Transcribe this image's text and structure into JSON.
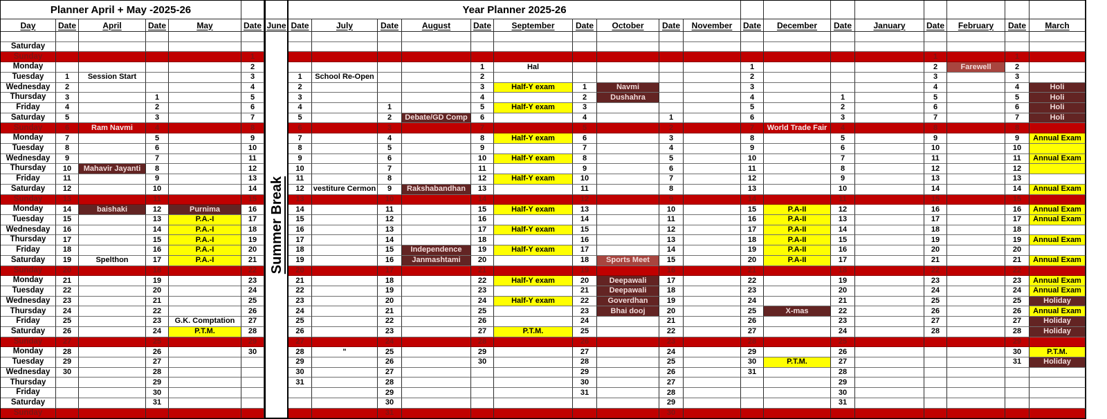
{
  "titles": {
    "left": "Planner April + May -2025-26",
    "right": "Year Planner 2025-26"
  },
  "summer_break": "Summer Break",
  "header": {
    "day": "Day",
    "date": "Date"
  },
  "day_names": [
    "Saturday",
    "Sunday",
    "Monday",
    "Tuesday",
    "Wednesday",
    "Thursday",
    "Friday"
  ],
  "colors": {
    "sunday_band": "#C00000",
    "sunday_text": "#7E1412",
    "holiday_maroon": "#632423",
    "event_brick": "#A8453F",
    "exam_yellow": "#FFFF00",
    "light_event_text": "#F2DCDB"
  },
  "months": [
    {
      "name": "April",
      "start_index": 4,
      "days": 30,
      "has_event_col": true,
      "events": {
        "1": [
          "Session Start",
          "p"
        ],
        "6": [
          "Ram Navmi",
          "w"
        ],
        "10": [
          "Mahavir Jayanti",
          "m"
        ],
        "14": [
          "baishaki",
          "m"
        ],
        "19": [
          "Spelthon",
          "p"
        ]
      }
    },
    {
      "name": "May",
      "start_index": 6,
      "days": 31,
      "has_event_col": true,
      "events": {
        "12": [
          "Purnima",
          "m"
        ],
        "13": [
          "P.A.-I",
          "y"
        ],
        "14": [
          "P.A.-I",
          "y"
        ],
        "15": [
          "P.A.-I",
          "y"
        ],
        "16": [
          "P.A.-I",
          "y"
        ],
        "17": [
          "P.A.-I",
          "y"
        ],
        "23": [
          "G.K. Comptation",
          "p"
        ],
        "24": [
          "P.T.M.",
          "y"
        ]
      }
    },
    {
      "name": "June",
      "start_index": 2,
      "days": 30,
      "has_event_col": false,
      "events": {}
    },
    {
      "name": "July",
      "start_index": 4,
      "days": 31,
      "has_event_col": true,
      "events": {
        "1": [
          "School Re-Open",
          "p"
        ],
        "12": [
          "vestiture Cermon",
          "p"
        ],
        "28": [
          "\"",
          "p"
        ]
      }
    },
    {
      "name": "August",
      "start_index": 7,
      "days": 31,
      "has_event_col": true,
      "events": {
        "2": [
          "Debate/GD Comp",
          "m"
        ],
        "9": [
          "Rakshabandhan",
          "m"
        ],
        "15": [
          "Independence",
          "m"
        ],
        "16": [
          "Janmashtami",
          "m"
        ]
      }
    },
    {
      "name": "September",
      "start_index": 3,
      "days": 30,
      "has_event_col": true,
      "events": {
        "1": [
          "Hal",
          "p"
        ],
        "3": [
          "Half-Y exam",
          "y"
        ],
        "5": [
          "Half-Y exam",
          "y"
        ],
        "8": [
          "Half-Y exam",
          "y"
        ],
        "10": [
          "Half-Y exam",
          "y"
        ],
        "12": [
          "Half-Y exam",
          "y"
        ],
        "15": [
          "Half-Y exam",
          "y"
        ],
        "17": [
          "Half-Y exam",
          "y"
        ],
        "19": [
          "Half-Y exam",
          "y"
        ],
        "22": [
          "Half-Y exam",
          "y"
        ],
        "24": [
          "Half-Y exam",
          "y"
        ],
        "27": [
          "P.T.M.",
          "y"
        ]
      }
    },
    {
      "name": "October",
      "start_index": 5,
      "days": 31,
      "has_event_col": true,
      "events": {
        "1": [
          "Navmi",
          "m"
        ],
        "2": [
          "Dushahra",
          "m"
        ],
        "18": [
          "Sports Meet",
          "b"
        ],
        "20": [
          "Deepawali",
          "m"
        ],
        "21": [
          "Deepawali",
          "m"
        ],
        "22": [
          "Goverdhan",
          "m"
        ],
        "23": [
          "Bhai dooj",
          "m"
        ]
      }
    },
    {
      "name": "November",
      "start_index": 8,
      "days": 30,
      "has_event_col": true,
      "events": {}
    },
    {
      "name": "December",
      "start_index": 3,
      "days": 31,
      "has_event_col": true,
      "events": {
        "7": [
          "World Trade Fair",
          "w"
        ],
        "15": [
          "P.A-II",
          "y"
        ],
        "16": [
          "P.A-II",
          "y"
        ],
        "17": [
          "P.A-II",
          "y"
        ],
        "18": [
          "P.A-II",
          "y"
        ],
        "19": [
          "P.A-II",
          "y"
        ],
        "20": [
          "P.A-II",
          "y"
        ],
        "25": [
          "X-mas",
          "m"
        ],
        "30": [
          "P.T.M.",
          "y"
        ]
      }
    },
    {
      "name": "January",
      "start_index": 6,
      "days": 31,
      "has_event_col": true,
      "events": {}
    },
    {
      "name": "February",
      "start_index": 2,
      "days": 28,
      "has_event_col": true,
      "events": {
        "2": [
          "Farewell",
          "b"
        ]
      }
    },
    {
      "name": "March",
      "start_index": 2,
      "days": 31,
      "has_event_col": true,
      "events": {
        "4": [
          "Holi",
          "m"
        ],
        "5": [
          "Holi",
          "m"
        ],
        "6": [
          "Holi",
          "m"
        ],
        "7": [
          "Holi",
          "m"
        ],
        "9": [
          "Annual Exam",
          "y"
        ],
        "10": [
          "",
          "y"
        ],
        "11": [
          "Annual Exam",
          "y"
        ],
        "12": [
          "",
          "y"
        ],
        "14": [
          "Annual Exam",
          "y"
        ],
        "16": [
          "Annual Exam",
          "y"
        ],
        "17": [
          "Annual Exam",
          "y"
        ],
        "19": [
          "Annual Exam",
          "y"
        ],
        "21": [
          "Annual Exam",
          "y"
        ],
        "23": [
          "Annual Exam",
          "y"
        ],
        "24": [
          "Annual Exam",
          "y"
        ],
        "25": [
          "Holiday",
          "m"
        ],
        "26": [
          "Annual Exam",
          "y"
        ],
        "27": [
          "Holiday",
          "m"
        ],
        "28": [
          "Holiday",
          "m"
        ],
        "30": [
          "P.T.M.",
          "y"
        ],
        "31": [
          "Holiday",
          "m"
        ]
      }
    }
  ]
}
